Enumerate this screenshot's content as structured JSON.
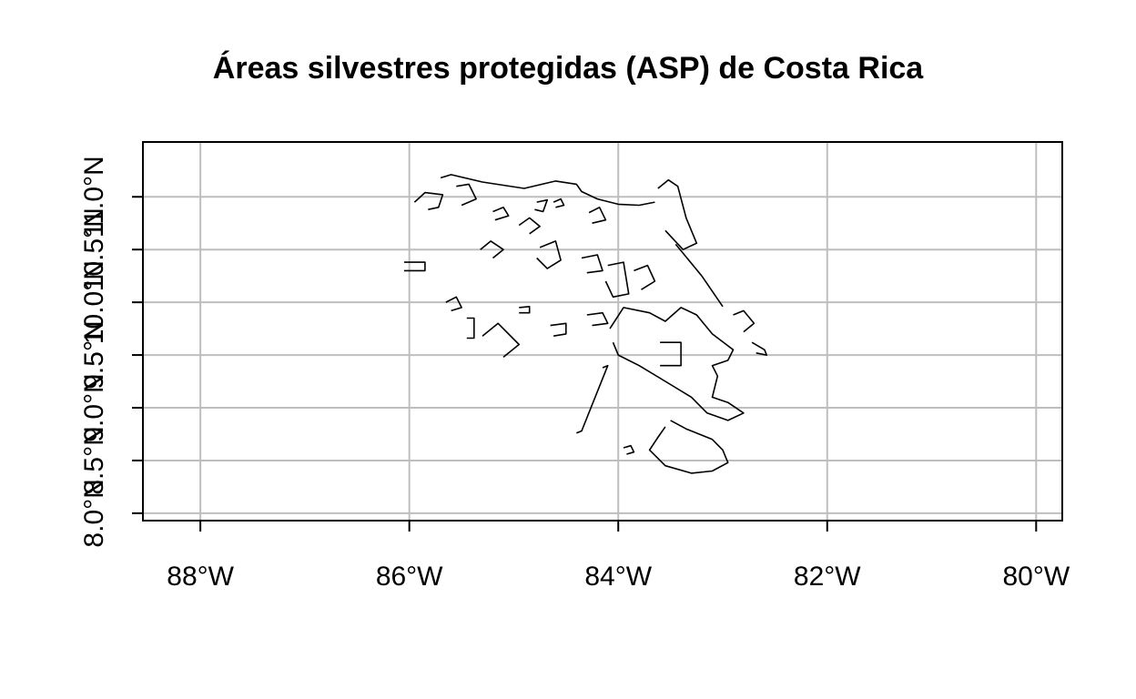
{
  "chart_data": {
    "type": "map",
    "title": "Áreas silvestres protegidas (ASP) de Costa Rica",
    "xlim": [
      -88.55,
      -79.75
    ],
    "ylim": [
      7.93,
      11.52
    ],
    "grid": true,
    "x_ticks": [
      {
        "value": -88,
        "label": "88°W"
      },
      {
        "value": -86,
        "label": "86°W"
      },
      {
        "value": -84,
        "label": "84°W"
      },
      {
        "value": -82,
        "label": "82°W"
      },
      {
        "value": -80,
        "label": "80°W"
      }
    ],
    "y_ticks": [
      {
        "value": 8.0,
        "label": "8.0°N"
      },
      {
        "value": 8.5,
        "label": "8.5°N"
      },
      {
        "value": 9.0,
        "label": "9.0°N"
      },
      {
        "value": 9.5,
        "label": "9.5°N"
      },
      {
        "value": 10.0,
        "label": "10.0°N"
      },
      {
        "value": 10.5,
        "label": "10.5°N"
      },
      {
        "value": 11.0,
        "label": "11.0°N"
      }
    ],
    "polygons": [
      [
        [
          -85.7,
          11.18
        ],
        [
          -85.6,
          11.21
        ],
        [
          -85.3,
          11.14
        ],
        [
          -84.9,
          11.08
        ],
        [
          -84.6,
          11.15
        ],
        [
          -84.4,
          11.12
        ],
        [
          -84.35,
          11.05
        ],
        [
          -84.2,
          10.98
        ],
        [
          -84.0,
          10.93
        ],
        [
          -83.8,
          10.92
        ],
        [
          -83.65,
          10.95
        ]
      ],
      [
        [
          -83.62,
          11.08
        ],
        [
          -83.52,
          11.16
        ],
        [
          -83.43,
          11.1
        ],
        [
          -83.35,
          10.8
        ],
        [
          -83.25,
          10.56
        ],
        [
          -83.38,
          10.5
        ],
        [
          -83.55,
          10.68
        ]
      ],
      [
        [
          -83.45,
          10.55
        ],
        [
          -83.2,
          10.25
        ],
        [
          -83.0,
          9.96
        ]
      ],
      [
        [
          -85.95,
          10.95
        ],
        [
          -85.85,
          11.04
        ],
        [
          -85.68,
          11.02
        ],
        [
          -85.72,
          10.9
        ],
        [
          -85.82,
          10.88
        ]
      ],
      [
        [
          -85.55,
          11.1
        ],
        [
          -85.43,
          11.12
        ],
        [
          -85.36,
          10.98
        ],
        [
          -85.5,
          10.92
        ]
      ],
      [
        [
          -85.2,
          10.86
        ],
        [
          -85.1,
          10.9
        ],
        [
          -85.05,
          10.82
        ],
        [
          -85.18,
          10.78
        ]
      ],
      [
        [
          -84.78,
          10.95
        ],
        [
          -84.68,
          10.97
        ],
        [
          -84.72,
          10.86
        ],
        [
          -84.8,
          10.88
        ]
      ],
      [
        [
          -84.95,
          10.73
        ],
        [
          -84.85,
          10.8
        ],
        [
          -84.75,
          10.72
        ],
        [
          -84.85,
          10.65
        ]
      ],
      [
        [
          -84.28,
          10.85
        ],
        [
          -84.18,
          10.9
        ],
        [
          -84.12,
          10.78
        ],
        [
          -84.25,
          10.75
        ]
      ],
      [
        [
          -85.32,
          10.5
        ],
        [
          -85.22,
          10.58
        ],
        [
          -85.1,
          10.5
        ],
        [
          -85.2,
          10.42
        ]
      ],
      [
        [
          -84.75,
          10.52
        ],
        [
          -84.6,
          10.58
        ],
        [
          -84.55,
          10.4
        ],
        [
          -84.68,
          10.32
        ],
        [
          -84.78,
          10.42
        ]
      ],
      [
        [
          -84.35,
          10.42
        ],
        [
          -84.2,
          10.45
        ],
        [
          -84.15,
          10.3
        ],
        [
          -84.3,
          10.28
        ]
      ],
      [
        [
          -84.1,
          10.35
        ],
        [
          -83.95,
          10.38
        ],
        [
          -83.9,
          10.08
        ],
        [
          -84.05,
          10.05
        ],
        [
          -84.12,
          10.2
        ]
      ],
      [
        [
          -83.85,
          10.3
        ],
        [
          -83.72,
          10.35
        ],
        [
          -83.65,
          10.2
        ],
        [
          -83.78,
          10.12
        ]
      ],
      [
        [
          -86.05,
          10.38
        ],
        [
          -85.85,
          10.38
        ],
        [
          -85.85,
          10.3
        ],
        [
          -86.05,
          10.3
        ]
      ],
      [
        [
          -85.65,
          10.0
        ],
        [
          -85.55,
          10.05
        ],
        [
          -85.5,
          9.95
        ],
        [
          -85.6,
          9.92
        ]
      ],
      [
        [
          -85.3,
          9.68
        ],
        [
          -85.15,
          9.8
        ],
        [
          -84.95,
          9.6
        ],
        [
          -85.1,
          9.48
        ]
      ],
      [
        [
          -85.45,
          9.85
        ],
        [
          -85.38,
          9.85
        ],
        [
          -85.38,
          9.66
        ],
        [
          -85.45,
          9.66
        ]
      ],
      [
        [
          -84.65,
          9.78
        ],
        [
          -84.5,
          9.8
        ],
        [
          -84.5,
          9.7
        ],
        [
          -84.62,
          9.68
        ]
      ],
      [
        [
          -84.3,
          9.88
        ],
        [
          -84.15,
          9.9
        ],
        [
          -84.1,
          9.8
        ],
        [
          -84.25,
          9.78
        ]
      ],
      [
        [
          -84.08,
          9.75
        ],
        [
          -83.95,
          9.95
        ],
        [
          -83.7,
          9.9
        ],
        [
          -83.55,
          9.82
        ],
        [
          -83.4,
          9.95
        ],
        [
          -83.25,
          9.88
        ],
        [
          -83.1,
          9.7
        ],
        [
          -82.9,
          9.55
        ],
        [
          -82.95,
          9.45
        ],
        [
          -83.1,
          9.4
        ],
        [
          -83.05,
          9.3
        ],
        [
          -83.1,
          9.1
        ],
        [
          -82.95,
          9.05
        ],
        [
          -82.8,
          8.95
        ],
        [
          -82.95,
          8.88
        ],
        [
          -83.15,
          8.95
        ],
        [
          -83.3,
          9.1
        ],
        [
          -83.55,
          9.25
        ],
        [
          -83.8,
          9.4
        ],
        [
          -84.0,
          9.5
        ],
        [
          -84.05,
          9.62
        ]
      ],
      [
        [
          -83.6,
          9.62
        ],
        [
          -83.4,
          9.62
        ],
        [
          -83.4,
          9.4
        ],
        [
          -83.6,
          9.4
        ]
      ],
      [
        [
          -84.15,
          9.38
        ],
        [
          -84.1,
          9.4
        ],
        [
          -84.35,
          8.78
        ],
        [
          -84.4,
          8.76
        ]
      ],
      [
        [
          -83.5,
          8.88
        ],
        [
          -83.35,
          8.8
        ],
        [
          -83.1,
          8.7
        ],
        [
          -83.0,
          8.6
        ],
        [
          -82.95,
          8.48
        ],
        [
          -83.1,
          8.4
        ],
        [
          -83.3,
          8.38
        ],
        [
          -83.55,
          8.45
        ],
        [
          -83.7,
          8.6
        ],
        [
          -83.62,
          8.72
        ],
        [
          -83.55,
          8.82
        ]
      ],
      [
        [
          -83.95,
          8.62
        ],
        [
          -83.88,
          8.64
        ],
        [
          -83.85,
          8.58
        ],
        [
          -83.92,
          8.56
        ]
      ],
      [
        [
          -82.9,
          9.88
        ],
        [
          -82.8,
          9.92
        ],
        [
          -82.7,
          9.8
        ],
        [
          -82.8,
          9.72
        ]
      ],
      [
        [
          -82.72,
          9.62
        ],
        [
          -82.6,
          9.55
        ],
        [
          -82.58,
          9.5
        ],
        [
          -82.68,
          9.52
        ]
      ],
      [
        [
          -84.95,
          9.95
        ],
        [
          -84.85,
          9.96
        ],
        [
          -84.85,
          9.9
        ],
        [
          -84.95,
          9.9
        ]
      ],
      [
        [
          -84.62,
          10.95
        ],
        [
          -84.55,
          10.98
        ],
        [
          -84.52,
          10.92
        ],
        [
          -84.6,
          10.9
        ]
      ]
    ]
  }
}
